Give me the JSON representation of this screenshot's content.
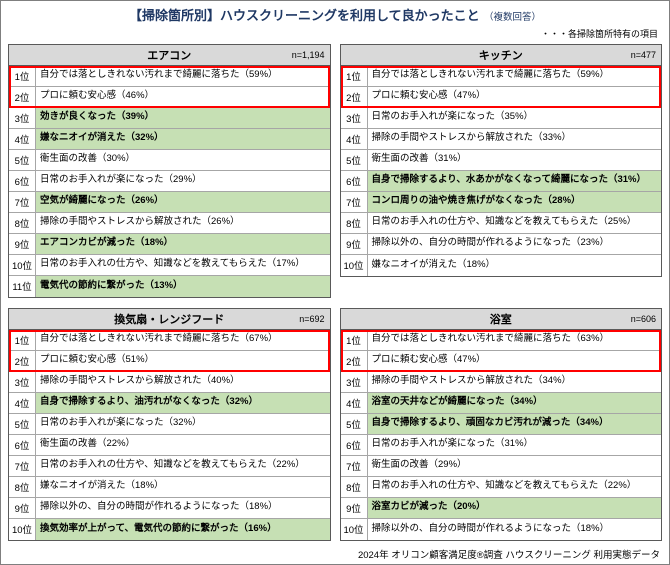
{
  "title": "【掃除箇所別】ハウスクリーニングを利用して良かったこと",
  "title_sub": "（複数回答）",
  "note": "・・・各掃除箇所特有の項目",
  "footer": "2024年 オリコン顧客満足度®調査 ハウスクリーニング 利用実態データ",
  "colors": {
    "highlight_green": "#c6e0b4",
    "header_gray": "#d9d9d9",
    "red_box": "#ff0000",
    "title_navy": "#1f3864"
  },
  "chart_data": [
    {
      "type": "table",
      "title": "エアコン",
      "n": "n=1,194",
      "columns": [
        "順位",
        "項目"
      ],
      "rows": [
        {
          "rank": "1位",
          "item": "自分では落としきれない汚れまで綺麗に落ちた（59%）",
          "value": 59,
          "unique": false,
          "top2": true
        },
        {
          "rank": "2位",
          "item": "プロに頼む安心感（46%）",
          "value": 46,
          "unique": false,
          "top2": true
        },
        {
          "rank": "3位",
          "item": "効きが良くなった（39%）",
          "value": 39,
          "unique": true,
          "top2": false
        },
        {
          "rank": "4位",
          "item": "嫌なニオイが消えた（32%）",
          "value": 32,
          "unique": true,
          "top2": false
        },
        {
          "rank": "5位",
          "item": "衛生面の改善（30%）",
          "value": 30,
          "unique": false,
          "top2": false
        },
        {
          "rank": "6位",
          "item": "日常のお手入れが楽になった（29%）",
          "value": 29,
          "unique": false,
          "top2": false
        },
        {
          "rank": "7位",
          "item": "空気が綺麗になった（26%）",
          "value": 26,
          "unique": true,
          "top2": false
        },
        {
          "rank": "8位",
          "item": "掃除の手間やストレスから解放された（26%）",
          "value": 26,
          "unique": false,
          "top2": false
        },
        {
          "rank": "9位",
          "item": "エアコンカビが減った（18%）",
          "value": 18,
          "unique": true,
          "top2": false
        },
        {
          "rank": "10位",
          "item": "日常のお手入れの仕方や、知識などを教えてもらえた（17%）",
          "value": 17,
          "unique": false,
          "top2": false
        },
        {
          "rank": "11位",
          "item": "電気代の節約に繋がった（13%）",
          "value": 13,
          "unique": true,
          "top2": false
        }
      ]
    },
    {
      "type": "table",
      "title": "キッチン",
      "n": "n=477",
      "columns": [
        "順位",
        "項目"
      ],
      "rows": [
        {
          "rank": "1位",
          "item": "自分では落としきれない汚れまで綺麗に落ちた（59%）",
          "value": 59,
          "unique": false,
          "top2": true
        },
        {
          "rank": "2位",
          "item": "プロに頼む安心感（47%）",
          "value": 47,
          "unique": false,
          "top2": true
        },
        {
          "rank": "3位",
          "item": "日常のお手入れが楽になった（35%）",
          "value": 35,
          "unique": false,
          "top2": false
        },
        {
          "rank": "4位",
          "item": "掃除の手間やストレスから解放された（33%）",
          "value": 33,
          "unique": false,
          "top2": false
        },
        {
          "rank": "5位",
          "item": "衛生面の改善（31%）",
          "value": 31,
          "unique": false,
          "top2": false
        },
        {
          "rank": "6位",
          "item": "自身で掃除するより、水あかがなくなって綺麗になった（31%）",
          "value": 31,
          "unique": true,
          "top2": false
        },
        {
          "rank": "7位",
          "item": "コンロ周りの油や焼き焦げがなくなった（28%）",
          "value": 28,
          "unique": true,
          "top2": false
        },
        {
          "rank": "8位",
          "item": "日常のお手入れの仕方や、知識などを教えてもらえた（25%）",
          "value": 25,
          "unique": false,
          "top2": false
        },
        {
          "rank": "9位",
          "item": "掃除以外の、自分の時間が作れるようになった（23%）",
          "value": 23,
          "unique": false,
          "top2": false
        },
        {
          "rank": "10位",
          "item": "嫌なニオイが消えた（18%）",
          "value": 18,
          "unique": false,
          "top2": false
        }
      ]
    },
    {
      "type": "table",
      "title": "換気扇・レンジフード",
      "n": "n=692",
      "columns": [
        "順位",
        "項目"
      ],
      "rows": [
        {
          "rank": "1位",
          "item": "自分では落としきれない汚れまで綺麗に落ちた（67%）",
          "value": 67,
          "unique": false,
          "top2": true
        },
        {
          "rank": "2位",
          "item": "プロに頼む安心感（51%）",
          "value": 51,
          "unique": false,
          "top2": true
        },
        {
          "rank": "3位",
          "item": "掃除の手間やストレスから解放された（40%）",
          "value": 40,
          "unique": false,
          "top2": false
        },
        {
          "rank": "4位",
          "item": "自身で掃除するより、油汚れがなくなった（32%）",
          "value": 32,
          "unique": true,
          "top2": false
        },
        {
          "rank": "5位",
          "item": "日常のお手入れが楽になった（32%）",
          "value": 32,
          "unique": false,
          "top2": false
        },
        {
          "rank": "6位",
          "item": "衛生面の改善（22%）",
          "value": 22,
          "unique": false,
          "top2": false
        },
        {
          "rank": "7位",
          "item": "日常のお手入れの仕方や、知識などを教えてもらえた（22%）",
          "value": 22,
          "unique": false,
          "top2": false
        },
        {
          "rank": "8位",
          "item": "嫌なニオイが消えた（18%）",
          "value": 18,
          "unique": false,
          "top2": false
        },
        {
          "rank": "9位",
          "item": "掃除以外の、自分の時間が作れるようになった（18%）",
          "value": 18,
          "unique": false,
          "top2": false
        },
        {
          "rank": "10位",
          "item": "換気効率が上がって、電気代の節約に繋がった（16%）",
          "value": 16,
          "unique": true,
          "top2": false
        }
      ]
    },
    {
      "type": "table",
      "title": "浴室",
      "n": "n=606",
      "columns": [
        "順位",
        "項目"
      ],
      "rows": [
        {
          "rank": "1位",
          "item": "自分では落としきれない汚れまで綺麗に落ちた（63%）",
          "value": 63,
          "unique": false,
          "top2": true
        },
        {
          "rank": "2位",
          "item": "プロに頼む安心感（47%）",
          "value": 47,
          "unique": false,
          "top2": true
        },
        {
          "rank": "3位",
          "item": "掃除の手間やストレスから解放された（34%）",
          "value": 34,
          "unique": false,
          "top2": false
        },
        {
          "rank": "4位",
          "item": "浴室の天井などが綺麗になった（34%）",
          "value": 34,
          "unique": true,
          "top2": false
        },
        {
          "rank": "5位",
          "item": "自身で掃除するより、頑固なカビ汚れが減った（34%）",
          "value": 34,
          "unique": true,
          "top2": false
        },
        {
          "rank": "6位",
          "item": "日常のお手入れが楽になった（31%）",
          "value": 31,
          "unique": false,
          "top2": false
        },
        {
          "rank": "7位",
          "item": "衛生面の改善（29%）",
          "value": 29,
          "unique": false,
          "top2": false
        },
        {
          "rank": "8位",
          "item": "日常のお手入れの仕方や、知識などを教えてもらえた（22%）",
          "value": 22,
          "unique": false,
          "top2": false
        },
        {
          "rank": "9位",
          "item": "浴室カビが減った（20%）",
          "value": 20,
          "unique": true,
          "top2": false
        },
        {
          "rank": "10位",
          "item": "掃除以外の、自分の時間が作れるようになった（18%）",
          "value": 18,
          "unique": false,
          "top2": false
        }
      ]
    }
  ]
}
